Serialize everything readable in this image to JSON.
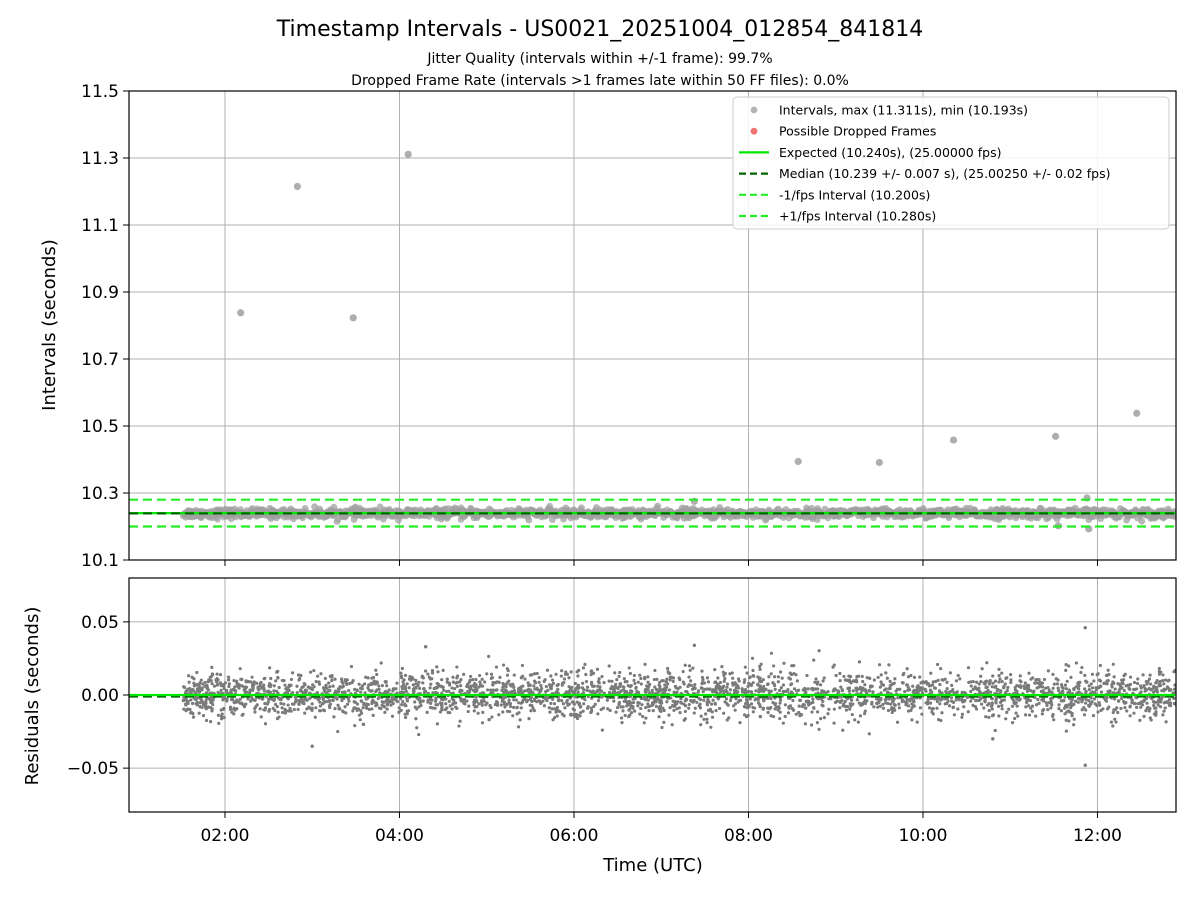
{
  "title": "Timestamp Intervals - US0021_20251004_012854_841814",
  "subtitle_jitter": "Jitter Quality (intervals within +/-1 frame): 99.7%",
  "subtitle_dropped": "Dropped Frame Rate (intervals >1 frames late within 50 FF files): 0.0%",
  "colors": {
    "intervals": "#a0a0a0",
    "dropped": "#f05050",
    "expected": "#00e600",
    "median": "#006400",
    "fps_band": "#22ee22",
    "residual_points": "#7a7a7a",
    "grid": "#b0b0b0"
  },
  "chart_data": [
    {
      "type": "scatter",
      "name": "intervals",
      "xlabel": "",
      "ylabel": "Intervals (seconds)",
      "xlim_hours": [
        0.9,
        12.9
      ],
      "ylim": [
        10.1,
        11.5
      ],
      "y_ticks": [
        "10.1",
        "10.3",
        "10.5",
        "10.7",
        "10.9",
        "11.1",
        "11.3",
        "11.5"
      ],
      "x_tick_hours": [
        2,
        4,
        6,
        8,
        10,
        12
      ],
      "grid": true,
      "legend_placement": "top-right",
      "legend": [
        {
          "label": "Intervals, max (11.311s), min (10.193s)",
          "kind": "marker",
          "color": "#a0a0a0"
        },
        {
          "label": "Possible Dropped Frames",
          "kind": "marker",
          "color": "#f05050"
        },
        {
          "label": "Expected (10.240s), (25.00000 fps)",
          "kind": "solid",
          "color": "#00e600"
        },
        {
          "label": "Median (10.239 +/- 0.007 s), (25.00250 +/- 0.02 fps)",
          "kind": "dashed",
          "color": "#006400"
        },
        {
          "label": "-1/fps Interval (10.200s)",
          "kind": "dashed",
          "color": "#22ee22"
        },
        {
          "label": "+1/fps Interval (10.280s)",
          "kind": "dashed",
          "color": "#22ee22"
        }
      ],
      "expected": 10.24,
      "median": 10.239,
      "minus_fps": 10.2,
      "plus_fps": 10.28,
      "series_range_hours": [
        1.52,
        12.9
      ],
      "band_center": 10.239,
      "band_spread": 0.007,
      "outliers": [
        {
          "x": 2.18,
          "y": 10.838
        },
        {
          "x": 2.83,
          "y": 11.215
        },
        {
          "x": 3.47,
          "y": 10.823
        },
        {
          "x": 4.1,
          "y": 11.311
        },
        {
          "x": 8.57,
          "y": 10.394
        },
        {
          "x": 9.5,
          "y": 10.391
        },
        {
          "x": 10.35,
          "y": 10.458
        },
        {
          "x": 11.52,
          "y": 10.469
        },
        {
          "x": 11.88,
          "y": 10.285
        },
        {
          "x": 11.9,
          "y": 10.193
        },
        {
          "x": 12.45,
          "y": 10.538
        },
        {
          "x": 7.38,
          "y": 10.275
        },
        {
          "x": 11.55,
          "y": 10.202
        }
      ]
    },
    {
      "type": "scatter",
      "name": "residuals",
      "xlabel": "Time (UTC)",
      "ylabel": "Residuals (seconds)",
      "xlim_hours": [
        0.9,
        12.9
      ],
      "ylim": [
        -0.08,
        0.08
      ],
      "y_ticks": [
        "−0.05",
        "0.00",
        "0.05"
      ],
      "y_tick_values": [
        -0.05,
        0.0,
        0.05
      ],
      "x_tick_labels": [
        "02:00",
        "04:00",
        "06:00",
        "08:00",
        "10:00",
        "12:00"
      ],
      "x_tick_hours": [
        2,
        4,
        6,
        8,
        10,
        12
      ],
      "grid": true,
      "zero_line": 0.0,
      "median_residual": -0.001,
      "series_range_hours": [
        1.52,
        12.9
      ],
      "residual_spread": 0.008,
      "residual_extremes": [
        {
          "x": 11.86,
          "y": 0.046
        },
        {
          "x": 11.86,
          "y": -0.048
        },
        {
          "x": 7.38,
          "y": 0.034
        },
        {
          "x": 4.3,
          "y": 0.033
        },
        {
          "x": 10.8,
          "y": -0.03
        },
        {
          "x": 3.0,
          "y": -0.035
        }
      ]
    }
  ]
}
